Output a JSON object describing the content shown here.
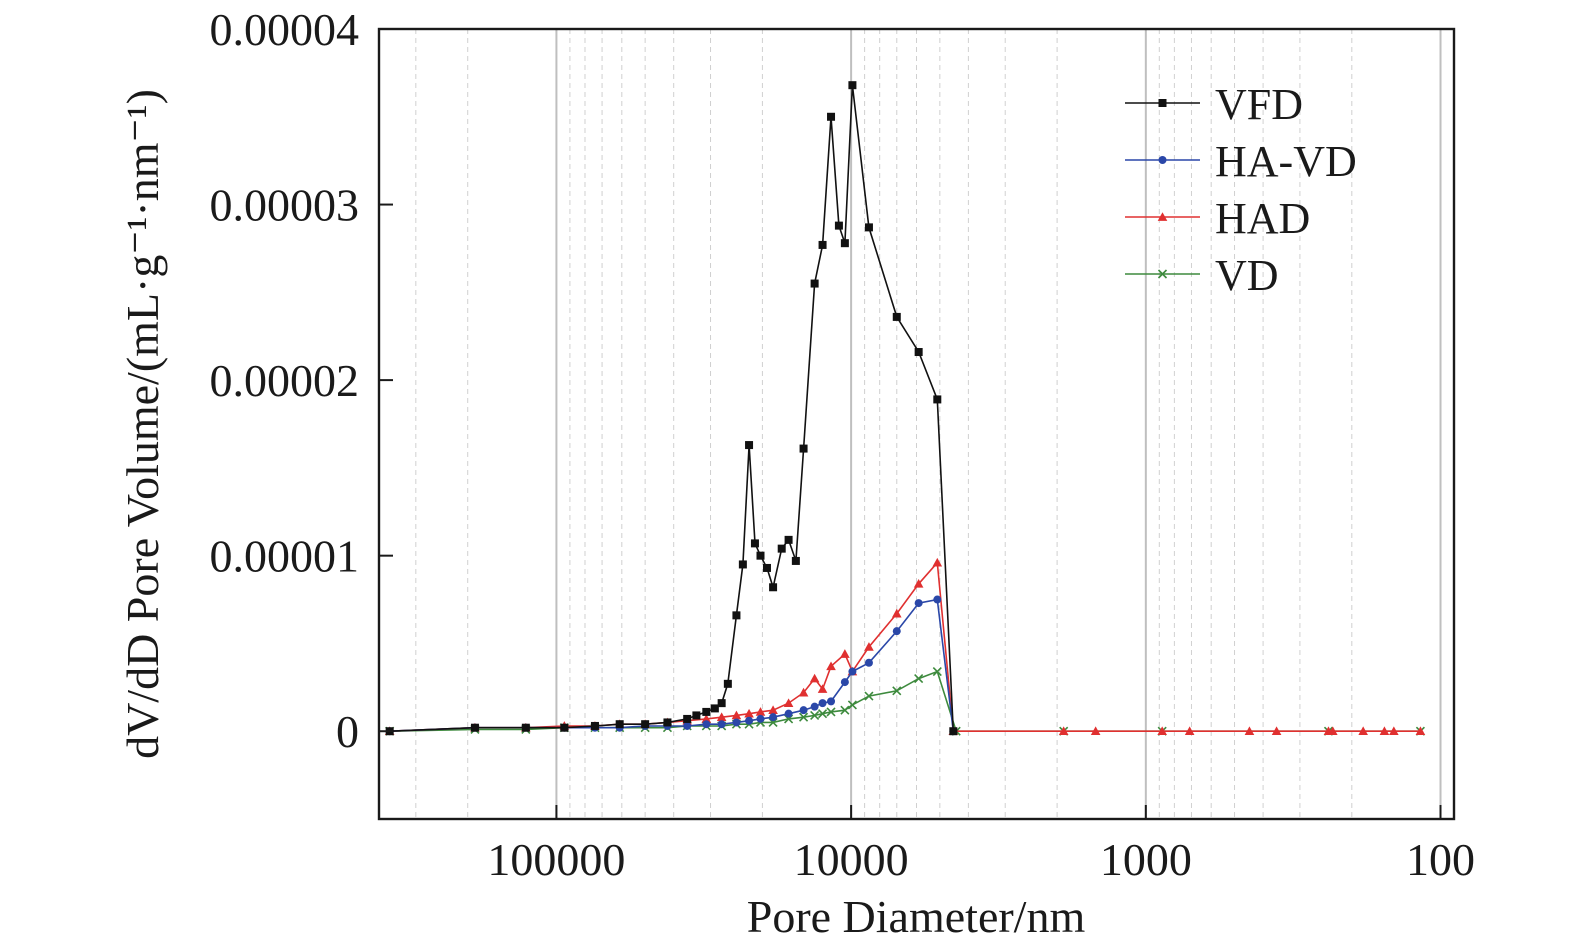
{
  "chart_data": {
    "type": "line",
    "title": "",
    "xlabel": "Pore Diameter/nm",
    "ylabel": "dV/dD Pore Volume/(mL·g⁻¹·nm⁻¹)",
    "x_scale": "log",
    "x_reversed": true,
    "xlim": [
      400000,
      90
    ],
    "ylim": [
      -5e-06,
      4e-05
    ],
    "x_ticks": [
      100000,
      10000,
      1000,
      100
    ],
    "x_tick_labels": [
      "100000",
      "10000",
      "1000",
      "100"
    ],
    "y_ticks": [
      0,
      1e-05,
      2e-05,
      3e-05,
      4e-05
    ],
    "y_tick_labels": [
      "0",
      "0.00001",
      "0.00002",
      "0.00003",
      "0.00004"
    ],
    "grid": true,
    "legend_position": "top-right",
    "series": [
      {
        "name": "VFD",
        "color": "#111111",
        "marker": "square",
        "points": [
          [
            368000,
            0.0
          ],
          [
            189000,
            2e-07
          ],
          [
            127000,
            2e-07
          ],
          [
            94000,
            2e-07
          ],
          [
            74000,
            3e-07
          ],
          [
            61000,
            4e-07
          ],
          [
            50000,
            4e-07
          ],
          [
            42000,
            5e-07
          ],
          [
            36000,
            7e-07
          ],
          [
            33500,
            9e-07
          ],
          [
            31000,
            1.1e-06
          ],
          [
            29000,
            1.3e-06
          ],
          [
            27500,
            1.6e-06
          ],
          [
            26200,
            2.7e-06
          ],
          [
            24500,
            6.6e-06
          ],
          [
            23300,
            9.5e-06
          ],
          [
            22200,
            1.63e-05
          ],
          [
            21200,
            1.07e-05
          ],
          [
            20300,
            1e-05
          ],
          [
            19300,
            9.3e-06
          ],
          [
            18400,
            8.2e-06
          ],
          [
            17200,
            1.04e-05
          ],
          [
            16300,
            1.09e-05
          ],
          [
            15400,
            9.7e-06
          ],
          [
            14500,
            1.61e-05
          ],
          [
            13300,
            2.55e-05
          ],
          [
            12500,
            2.77e-05
          ],
          [
            11700,
            3.5e-05
          ],
          [
            11000,
            2.88e-05
          ],
          [
            10500,
            2.78e-05
          ],
          [
            9900,
            3.68e-05
          ],
          [
            8700,
            2.87e-05
          ],
          [
            7000,
            2.36e-05
          ],
          [
            5900,
            2.16e-05
          ],
          [
            5100,
            1.89e-05
          ],
          [
            4500,
            0.0
          ]
        ]
      },
      {
        "name": "HA-VD",
        "color": "#2a47a8",
        "marker": "circle",
        "points": [
          [
            368000,
            0.0
          ],
          [
            189000,
            2e-07
          ],
          [
            127000,
            2e-07
          ],
          [
            94000,
            2e-07
          ],
          [
            74000,
            2e-07
          ],
          [
            61000,
            2e-07
          ],
          [
            50000,
            3e-07
          ],
          [
            42000,
            3e-07
          ],
          [
            36000,
            3e-07
          ],
          [
            31000,
            4e-07
          ],
          [
            27500,
            4e-07
          ],
          [
            24500,
            5e-07
          ],
          [
            22200,
            6e-07
          ],
          [
            20300,
            7e-07
          ],
          [
            18400,
            8e-07
          ],
          [
            16300,
            1e-06
          ],
          [
            14500,
            1.2e-06
          ],
          [
            13300,
            1.4e-06
          ],
          [
            12500,
            1.6e-06
          ],
          [
            11700,
            1.7e-06
          ],
          [
            10500,
            2.8e-06
          ],
          [
            9900,
            3.4e-06
          ],
          [
            8700,
            3.9e-06
          ],
          [
            7000,
            5.7e-06
          ],
          [
            5900,
            7.3e-06
          ],
          [
            5100,
            7.5e-06
          ],
          [
            4500,
            0.0
          ]
        ]
      },
      {
        "name": "HAD",
        "color": "#e03030",
        "marker": "triangle",
        "points": [
          [
            368000,
            0.0
          ],
          [
            189000,
            2e-07
          ],
          [
            127000,
            2e-07
          ],
          [
            94000,
            3e-07
          ],
          [
            74000,
            3e-07
          ],
          [
            61000,
            4e-07
          ],
          [
            50000,
            4e-07
          ],
          [
            42000,
            5e-07
          ],
          [
            36000,
            6e-07
          ],
          [
            31000,
            7e-07
          ],
          [
            27500,
            8e-07
          ],
          [
            24500,
            9e-07
          ],
          [
            22200,
            1e-06
          ],
          [
            20300,
            1.1e-06
          ],
          [
            18400,
            1.2e-06
          ],
          [
            16300,
            1.6e-06
          ],
          [
            14500,
            2.2e-06
          ],
          [
            13300,
            3e-06
          ],
          [
            12500,
            2.4e-06
          ],
          [
            11700,
            3.7e-06
          ],
          [
            10500,
            4.4e-06
          ],
          [
            9900,
            3.4e-06
          ],
          [
            8700,
            4.8e-06
          ],
          [
            7000,
            6.7e-06
          ],
          [
            5900,
            8.4e-06
          ],
          [
            5100,
            9.6e-06
          ],
          [
            4500,
            0.0
          ],
          [
            1900,
            0.0
          ],
          [
            1480,
            0.0
          ],
          [
            880,
            0.0
          ],
          [
            710,
            0.0
          ],
          [
            445,
            0.0
          ],
          [
            360,
            0.0
          ],
          [
            240,
            0.0
          ],
          [
            232,
            0.0
          ],
          [
            183,
            0.0
          ],
          [
            155,
            0.0
          ],
          [
            144,
            0.0
          ],
          [
            117,
            0.0
          ]
        ]
      },
      {
        "name": "VD",
        "color": "#3d8a3d",
        "marker": "cross",
        "points": [
          [
            368000,
            0.0
          ],
          [
            189000,
            1e-07
          ],
          [
            127000,
            1e-07
          ],
          [
            94000,
            2e-07
          ],
          [
            74000,
            2e-07
          ],
          [
            61000,
            2e-07
          ],
          [
            50000,
            2e-07
          ],
          [
            42000,
            2e-07
          ],
          [
            36000,
            3e-07
          ],
          [
            31000,
            3e-07
          ],
          [
            27500,
            3e-07
          ],
          [
            24500,
            4e-07
          ],
          [
            22200,
            4e-07
          ],
          [
            20300,
            5e-07
          ],
          [
            18400,
            5e-07
          ],
          [
            16300,
            7e-07
          ],
          [
            14500,
            8e-07
          ],
          [
            13300,
            9e-07
          ],
          [
            12500,
            1e-06
          ],
          [
            11700,
            1.1e-06
          ],
          [
            10500,
            1.2e-06
          ],
          [
            9900,
            1.5e-06
          ],
          [
            8700,
            2e-06
          ],
          [
            7000,
            2.3e-06
          ],
          [
            5900,
            3e-06
          ],
          [
            5100,
            3.4e-06
          ],
          [
            4400,
            0.0
          ],
          [
            1900,
            0.0
          ],
          [
            880,
            0.0
          ],
          [
            240,
            0.0
          ],
          [
            117,
            0.0
          ]
        ]
      }
    ]
  }
}
